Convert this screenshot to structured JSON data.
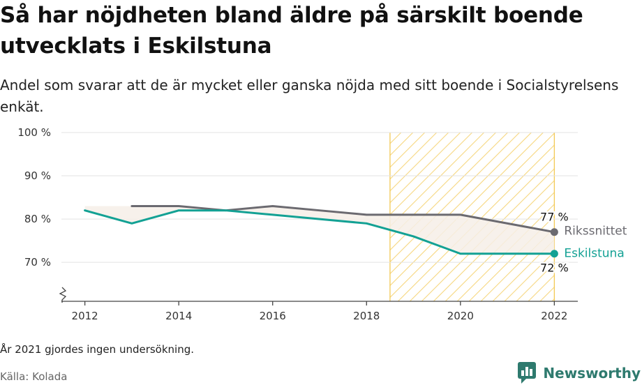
{
  "title": "Så har nöjdheten bland äldre på särskilt boende utvecklats i Eskilstuna",
  "subtitle": "Andel som svarar att de är mycket eller ganska nöjda med sitt boende i Socialstyrelsens enkät.",
  "footnote": "År 2021 gjordes ingen undersökning.",
  "source": "Källa: Kolada",
  "brand": "Newsworthy",
  "colors": {
    "eskilstuna": "#13a194",
    "riksnittet": "#6b6a70",
    "highlight": "#f3c955",
    "diff_fill": "#f6eee8",
    "grid": "#e3e3e3",
    "brand": "#2e7a6e"
  },
  "chart_data": {
    "type": "line",
    "xlim": [
      2011.5,
      2022.5
    ],
    "ylim": [
      61,
      100
    ],
    "x_ticks": [
      2012,
      2014,
      2016,
      2018,
      2020,
      2022
    ],
    "x_tick_labels": [
      "2012",
      "2014",
      "2016",
      "2018",
      "2020",
      "2022"
    ],
    "y_ticks": [
      70,
      80,
      90,
      100
    ],
    "y_tick_labels": [
      "70 %",
      "80 %",
      "90 %",
      "100 %"
    ],
    "y_axis_break": true,
    "highlight_range": [
      2018.5,
      2022
    ],
    "series": [
      {
        "name": "Rikssnittet",
        "key": "riksnittet",
        "x": [
          2013,
          2014,
          2015,
          2016,
          2017,
          2018,
          2019,
          2020,
          2022
        ],
        "values": [
          83,
          83,
          82,
          83,
          82,
          81,
          81,
          81,
          77
        ],
        "end_label": "77 %"
      },
      {
        "name": "Eskilstuna",
        "key": "eskilstuna",
        "x": [
          2012,
          2013,
          2014,
          2015,
          2016,
          2017,
          2018,
          2019,
          2020,
          2022
        ],
        "values": [
          82,
          79,
          82,
          82,
          81,
          80,
          79,
          76,
          72,
          72
        ],
        "end_label": "72 %"
      }
    ]
  }
}
